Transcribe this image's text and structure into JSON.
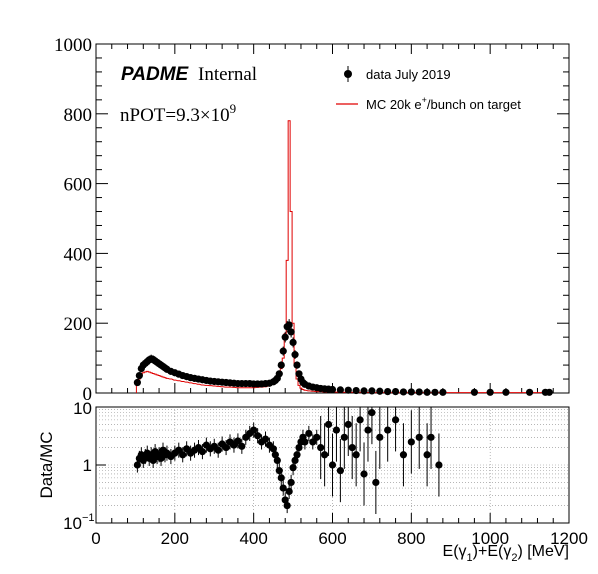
{
  "colors": {
    "data": "#000000",
    "mc": "#e00000",
    "axis": "#000000",
    "grid": "#8a8a8a"
  },
  "labels": {
    "brand": "PADME",
    "brand_suffix": "Internal",
    "npot_text": "nPOT=9.3×10",
    "npot_exp": "9",
    "x_axis_title": "E(γ",
    "x_axis_sub1": "1",
    "x_axis_mid": ")+E(γ",
    "x_axis_sub2": "2",
    "x_axis_end": ") [MeV]",
    "ratio_ylabel": "Data/MC"
  },
  "legend": [
    {
      "text": "data July 2019",
      "marker": "point"
    },
    {
      "text": "MC 20k e",
      "sup": "+",
      "text_after": "/bunch on target",
      "marker": "line"
    }
  ],
  "chart_data": [
    {
      "type": "scatter",
      "panel": "main",
      "xlim": [
        0,
        1200
      ],
      "ylim": [
        0,
        1000
      ],
      "x_ticks": [
        0,
        200,
        400,
        600,
        800,
        1000,
        1200
      ],
      "y_ticks": [
        0,
        200,
        400,
        600,
        800,
        1000
      ],
      "grid": false,
      "legend_position": "top-right",
      "series": [
        {
          "name": "data July 2019",
          "style": "points",
          "x": [
            105,
            110,
            115,
            120,
            125,
            130,
            135,
            140,
            145,
            150,
            155,
            160,
            165,
            170,
            175,
            180,
            190,
            200,
            210,
            220,
            230,
            240,
            250,
            260,
            270,
            280,
            290,
            300,
            310,
            320,
            330,
            340,
            350,
            360,
            370,
            380,
            390,
            400,
            410,
            420,
            430,
            440,
            450,
            455,
            460,
            465,
            470,
            475,
            480,
            485,
            490,
            495,
            500,
            505,
            510,
            515,
            520,
            525,
            530,
            540,
            550,
            560,
            570,
            580,
            590,
            600,
            620,
            640,
            660,
            680,
            700,
            720,
            740,
            760,
            780,
            800,
            820,
            840,
            860,
            880,
            960,
            1000,
            1040,
            1100,
            1140,
            1150
          ],
          "y": [
            30,
            50,
            70,
            80,
            85,
            90,
            95,
            98,
            96,
            92,
            88,
            84,
            80,
            76,
            72,
            68,
            62,
            58,
            54,
            50,
            47,
            44,
            42,
            40,
            38,
            36,
            34,
            33,
            32,
            31,
            30,
            29,
            28,
            27,
            27,
            27,
            27,
            26,
            26,
            26,
            27,
            28,
            32,
            36,
            42,
            55,
            80,
            120,
            160,
            190,
            195,
            175,
            145,
            110,
            80,
            55,
            40,
            30,
            25,
            20,
            17,
            15,
            13,
            12,
            11,
            10,
            9,
            8,
            7,
            6,
            6,
            5,
            4,
            4,
            3,
            3,
            3,
            2,
            2,
            2,
            2,
            2,
            2,
            2,
            2,
            2
          ]
        },
        {
          "name": "MC 20k e+/bunch on target",
          "style": "step",
          "x": [
            105,
            110,
            115,
            120,
            125,
            130,
            135,
            140,
            145,
            150,
            155,
            160,
            165,
            170,
            175,
            180,
            190,
            200,
            210,
            220,
            230,
            240,
            250,
            260,
            270,
            280,
            290,
            300,
            310,
            320,
            330,
            340,
            350,
            360,
            370,
            380,
            390,
            400,
            410,
            420,
            430,
            440,
            450,
            455,
            460,
            465,
            470,
            475,
            480,
            485,
            490,
            495,
            500,
            505,
            510,
            515,
            520,
            525,
            530,
            540,
            550,
            560,
            570,
            580,
            590,
            600,
            620,
            640,
            660,
            680,
            700,
            720,
            740,
            760,
            780,
            800,
            820,
            840,
            860,
            880,
            960,
            1000,
            1040,
            1100,
            1140,
            1150
          ],
          "y": [
            25,
            40,
            52,
            58,
            60,
            62,
            60,
            58,
            56,
            54,
            52,
            50,
            48,
            46,
            44,
            42,
            40,
            37,
            35,
            33,
            31,
            29,
            27,
            25,
            23,
            22,
            21,
            20,
            19,
            18,
            17,
            17,
            16,
            15,
            15,
            15,
            15,
            15,
            16,
            17,
            18,
            20,
            25,
            30,
            40,
            55,
            70,
            100,
            170,
            380,
            780,
            520,
            200,
            80,
            40,
            22,
            14,
            10,
            8,
            6,
            5,
            4,
            4,
            3,
            3,
            3,
            2,
            2,
            2,
            2,
            1,
            1,
            1,
            1,
            1,
            1,
            1,
            1,
            1,
            1,
            1,
            1,
            1,
            1,
            1,
            1
          ]
        }
      ]
    },
    {
      "type": "scatter",
      "panel": "ratio",
      "ylabel": "Data/MC",
      "xlim": [
        0,
        1200
      ],
      "ylim": [
        0.1,
        10
      ],
      "y_scale": "log",
      "x_ticks": [
        0,
        200,
        400,
        600,
        800,
        1000,
        1200
      ],
      "y_ticks": [
        "10^-1",
        "1",
        "10"
      ],
      "grid": true,
      "series": [
        {
          "name": "data July 2019",
          "style": "points",
          "x": [
            105,
            110,
            115,
            120,
            125,
            130,
            135,
            140,
            145,
            150,
            155,
            160,
            165,
            170,
            175,
            180,
            190,
            200,
            210,
            220,
            230,
            240,
            250,
            260,
            270,
            280,
            290,
            300,
            310,
            320,
            330,
            340,
            350,
            360,
            370,
            380,
            390,
            400,
            410,
            420,
            430,
            440,
            450,
            455,
            460,
            465,
            470,
            475,
            480,
            485,
            490,
            495,
            500,
            505,
            510,
            515,
            520,
            525,
            530,
            540,
            550,
            560,
            570,
            580,
            590,
            600,
            610,
            620,
            630,
            640,
            650,
            660,
            670,
            680,
            690,
            700,
            710,
            720,
            740,
            760,
            780,
            800,
            820,
            840,
            850,
            870
          ],
          "y": [
            1.0,
            1.3,
            1.5,
            1.2,
            1.4,
            1.6,
            1.3,
            1.5,
            1.2,
            1.7,
            1.4,
            1.5,
            1.3,
            1.8,
            1.5,
            1.6,
            1.4,
            1.6,
            1.8,
            1.5,
            1.9,
            1.6,
            1.8,
            2.0,
            1.7,
            2.2,
            1.9,
            2.1,
            1.8,
            2.3,
            2.0,
            2.5,
            2.2,
            2.6,
            2.1,
            3.0,
            3.5,
            4.0,
            3.2,
            2.5,
            2.8,
            2.2,
            1.9,
            1.5,
            1.2,
            0.8,
            0.6,
            0.4,
            0.25,
            0.2,
            0.35,
            0.5,
            0.9,
            1.2,
            1.5,
            2.0,
            2.5,
            3.0,
            2.5,
            3.5,
            2.5,
            3.0,
            2.0,
            1.5,
            5.0,
            1.0,
            4.0,
            0.8,
            3.0,
            5.0,
            2.0,
            1.5,
            6.0,
            0.7,
            4.0,
            8.0,
            0.5,
            3.0,
            4.0,
            6.0,
            1.5,
            2.5,
            3.0,
            1.5,
            3.0,
            1.0
          ]
        }
      ]
    }
  ]
}
